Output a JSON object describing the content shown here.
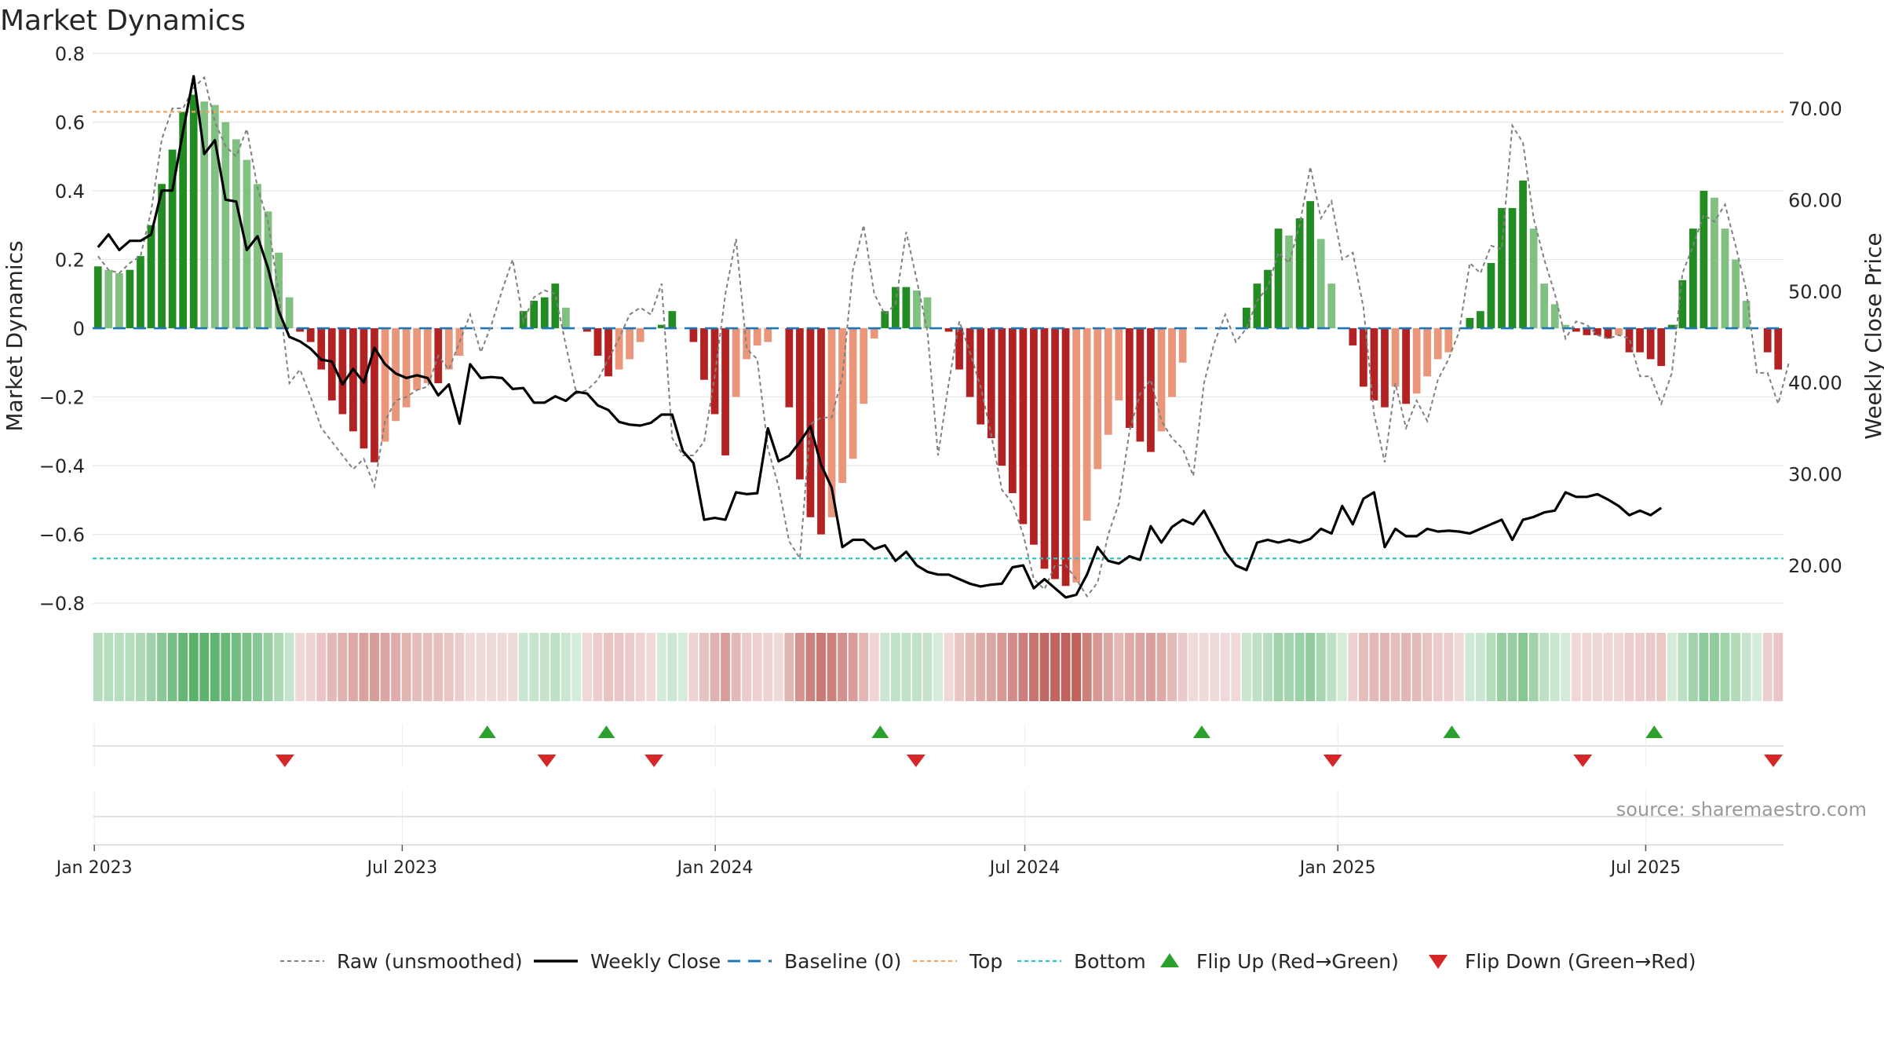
{
  "title": "Market Dynamics",
  "source": "source: sharemaestro.com",
  "colors": {
    "strong_green": "#228b22",
    "light_green": "#80c080",
    "strong_red": "#b22222",
    "light_red": "#e9967a",
    "top_line": "#f4a460",
    "bottom_line": "#2ec4c4",
    "baseline": "#1f77b4",
    "raw": "#808080",
    "close": "#000000",
    "flip_up": "#2ca02c",
    "flip_down": "#d62728"
  },
  "chart_data": {
    "type": "bar",
    "title": "Market Dynamics",
    "ylabel_left": "Market Dynamics",
    "ylabel_right": "Weekly Close Price",
    "ylim_left": [
      -0.85,
      0.8
    ],
    "ylim_right": [
      14,
      76
    ],
    "left_ticks": [
      0.8,
      0.6,
      0.4,
      0.2,
      0,
      -0.2,
      -0.4,
      -0.6,
      -0.8
    ],
    "left_tick_labels": [
      "0.8",
      "0.6",
      "0.4",
      "0.2",
      "0",
      "−0.2",
      "−0.4",
      "−0.6",
      "−0.8"
    ],
    "right_ticks": [
      70,
      60,
      50,
      40,
      30,
      20
    ],
    "right_tick_labels": [
      "70.00",
      "60.00",
      "50.00",
      "40.00",
      "30.00",
      "20.00"
    ],
    "top_level": 0.63,
    "bottom_level": -0.67,
    "x_start": "2022-12-31",
    "x_end": "2025-09-20",
    "x_ticks": [
      "2023-01-01",
      "2023-07-01",
      "2024-01-01",
      "2024-07-01",
      "2025-01-01",
      "2025-07-01"
    ],
    "x_tick_labels": [
      "Jan 2023",
      "Jul 2023",
      "Jan 2024",
      "Jul 2024",
      "Jan 2025",
      "Jul 2025"
    ],
    "bars": [
      0.18,
      0.17,
      0.16,
      0.17,
      0.21,
      0.3,
      0.42,
      0.52,
      0.63,
      0.68,
      0.66,
      0.65,
      0.6,
      0.55,
      0.49,
      0.42,
      0.34,
      0.22,
      0.09,
      -0.01,
      -0.04,
      -0.12,
      -0.21,
      -0.25,
      -0.3,
      -0.35,
      -0.39,
      -0.33,
      -0.27,
      -0.23,
      -0.18,
      -0.16,
      -0.16,
      -0.12,
      -0.08,
      0,
      0,
      0,
      0,
      0,
      0.05,
      0.08,
      0.09,
      0.13,
      0.06,
      0,
      -0.01,
      -0.08,
      -0.14,
      -0.12,
      -0.09,
      -0.04,
      0,
      0.01,
      0.05,
      0,
      -0.04,
      -0.15,
      -0.25,
      -0.37,
      -0.2,
      -0.09,
      -0.05,
      -0.04,
      0,
      -0.23,
      -0.44,
      -0.55,
      -0.6,
      -0.55,
      -0.45,
      -0.38,
      -0.22,
      -0.03,
      0.05,
      0.12,
      0.12,
      0.11,
      0.09,
      0,
      -0.01,
      -0.12,
      -0.2,
      -0.28,
      -0.32,
      -0.4,
      -0.48,
      -0.57,
      -0.63,
      -0.7,
      -0.73,
      -0.75,
      -0.74,
      -0.56,
      -0.41,
      -0.31,
      -0.21,
      -0.29,
      -0.33,
      -0.36,
      -0.3,
      -0.2,
      -0.1,
      0,
      0,
      0,
      0,
      0,
      0.06,
      0.13,
      0.17,
      0.29,
      0.27,
      0.32,
      0.37,
      0.26,
      0.13,
      0,
      -0.05,
      -0.17,
      -0.21,
      -0.23,
      -0.17,
      -0.22,
      -0.19,
      -0.14,
      -0.09,
      -0.07,
      0,
      0.03,
      0.05,
      0.19,
      0.35,
      0.35,
      0.43,
      0.29,
      0.13,
      0.07,
      0.01,
      -0.01,
      -0.02,
      -0.02,
      -0.03,
      -0.02,
      -0.07,
      -0.07,
      -0.09,
      -0.11,
      0.01,
      0.14,
      0.29,
      0.4,
      0.38,
      0.29,
      0.2,
      0.08,
      0,
      -0.07,
      -0.12
    ],
    "series": [
      {
        "name": "Raw (unsmoothed)",
        "values": [
          0.21,
          0.17,
          0.16,
          0.19,
          0.21,
          0.34,
          0.55,
          0.64,
          0.64,
          0.7,
          0.73,
          0.6,
          0.53,
          0.5,
          0.58,
          0.41,
          0.31,
          0.1,
          -0.16,
          -0.12,
          -0.2,
          -0.29,
          -0.33,
          -0.37,
          -0.41,
          -0.38,
          -0.46,
          -0.27,
          -0.21,
          -0.2,
          -0.18,
          -0.17,
          -0.08,
          -0.12,
          -0.04,
          0.04,
          -0.07,
          0.01,
          0.11,
          0.2,
          0.02,
          0.09,
          0.11,
          0.1,
          -0.05,
          -0.19,
          -0.18,
          -0.15,
          -0.09,
          -0.03,
          0.04,
          0.06,
          0.04,
          0.13,
          -0.32,
          -0.37,
          -0.37,
          -0.33,
          -0.14,
          0.1,
          0.26,
          -0.06,
          -0.09,
          -0.35,
          -0.46,
          -0.62,
          -0.67,
          -0.28,
          -0.26,
          -0.26,
          -0.14,
          0.17,
          0.3,
          0.1,
          0.04,
          0.07,
          0.28,
          0.14,
          -0.01,
          -0.37,
          -0.16,
          0.02,
          -0.07,
          -0.17,
          -0.31,
          -0.47,
          -0.51,
          -0.6,
          -0.73,
          -0.76,
          -0.69,
          -0.69,
          -0.73,
          -0.78,
          -0.74,
          -0.6,
          -0.51,
          -0.3,
          -0.19,
          -0.15,
          -0.27,
          -0.32,
          -0.35,
          -0.43,
          -0.16,
          -0.04,
          0.04,
          -0.04,
          0,
          0.08,
          0.12,
          0.22,
          0.19,
          0.3,
          0.47,
          0.32,
          0.37,
          0.2,
          0.22,
          0.06,
          -0.25,
          -0.39,
          -0.16,
          -0.29,
          -0.21,
          -0.27,
          -0.15,
          -0.09,
          -0.01,
          0.19,
          0.16,
          0.24,
          0.23,
          0.59,
          0.54,
          0.32,
          0.2,
          0.1,
          -0.03,
          0.02,
          0.01,
          -0.02,
          -0.03,
          -0.02,
          -0.03,
          -0.14,
          -0.14,
          -0.22,
          -0.13,
          0.16,
          0.24,
          0.33,
          0.31,
          0.36,
          0.24,
          0.11,
          -0.13,
          -0.13,
          -0.22,
          -0.1
        ]
      },
      {
        "name": "Weekly Close",
        "values": [
          54.8,
          56.2,
          54.5,
          55.5,
          55.5,
          56.2,
          61.0,
          61.0,
          67.5,
          73.5,
          65.0,
          66.5,
          60.0,
          59.8,
          54.5,
          56.0,
          52.5,
          47.8,
          45.0,
          44.5,
          43.7,
          42.5,
          42.3,
          39.8,
          41.5,
          40.0,
          43.8,
          42.0,
          41.0,
          40.5,
          40.8,
          40.5,
          38.6,
          39.8,
          35.5,
          42.0,
          40.5,
          40.6,
          40.5,
          39.3,
          39.4,
          37.8,
          37.8,
          38.5,
          38.0,
          39.0,
          38.8,
          37.5,
          37.0,
          35.7,
          35.4,
          35.3,
          35.6,
          36.5,
          36.5,
          32.5,
          31.2,
          25.0,
          25.2,
          25.0,
          28.0,
          27.8,
          27.9,
          35.0,
          31.4,
          32.0,
          33.5,
          35.2,
          31.0,
          28.5,
          22.0,
          22.8,
          22.8,
          21.8,
          22.2,
          20.5,
          21.5,
          20.0,
          19.3,
          19.0,
          19.0,
          18.5,
          18.0,
          17.7,
          17.9,
          18.0,
          19.8,
          20.0,
          17.5,
          18.5,
          17.5,
          16.5,
          16.8,
          19.0,
          22.0,
          20.5,
          20.2,
          21.0,
          20.6,
          24.3,
          22.5,
          24.2,
          25.0,
          24.5,
          26.0,
          23.8,
          21.5,
          20.0,
          19.5,
          22.5,
          22.8,
          22.5,
          22.8,
          22.5,
          22.9,
          24.0,
          23.5,
          26.5,
          24.5,
          27.3,
          28.0,
          22.0,
          24.0,
          23.2,
          23.2,
          24.0,
          23.7,
          23.8,
          23.7,
          23.5,
          24.0,
          24.5,
          25.0,
          22.8,
          25.0,
          25.3,
          25.8,
          26.0,
          28.0,
          27.5,
          27.5,
          27.8,
          27.2,
          26.5,
          25.5,
          26.0,
          25.5,
          26.3
        ]
      },
      {
        "name": "Baseline (0)",
        "values": [
          0,
          0
        ]
      },
      {
        "name": "Top",
        "values": [
          0.63,
          0.63
        ]
      },
      {
        "name": "Bottom",
        "values": [
          -0.67,
          -0.67
        ]
      }
    ],
    "flips_up": [
      "2023-08-20",
      "2023-10-29",
      "2024-04-07",
      "2024-10-13",
      "2025-03-09",
      "2025-07-06"
    ],
    "flips_down": [
      "2023-04-23",
      "2023-09-24",
      "2023-11-26",
      "2024-04-28",
      "2024-12-29",
      "2025-05-25",
      "2025-09-14"
    ],
    "legend_position": "bottom",
    "legend": [
      "Raw (unsmoothed)",
      "Weekly Close",
      "Baseline (0)",
      "Top",
      "Bottom",
      "Flip Up (Red→Green)",
      "Flip Down (Green→Red)"
    ]
  }
}
